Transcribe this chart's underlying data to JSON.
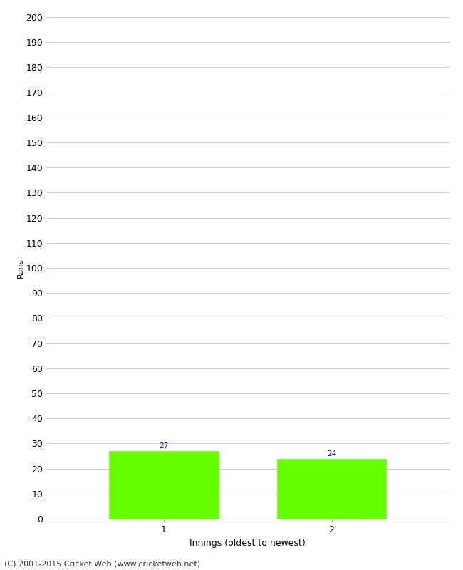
{
  "categories": [
    "1",
    "2"
  ],
  "values": [
    27,
    24
  ],
  "bar_color": "#66ff00",
  "bar_edge_color": "#66ff00",
  "xlabel": "Innings (oldest to newest)",
  "ylabel": "Runs",
  "ylim": [
    0,
    200
  ],
  "ytick_step": 10,
  "label_color": "#0000cc",
  "label_fontsize": 7.5,
  "tick_fontsize": 9,
  "ylabel_fontsize": 8,
  "xlabel_fontsize": 9,
  "footer_text": "(C) 2001-2015 Cricket Web (www.cricketweb.net)",
  "footer_fontsize": 8,
  "background_color": "#ffffff",
  "grid_color": "#cccccc",
  "bar_width": 0.65
}
